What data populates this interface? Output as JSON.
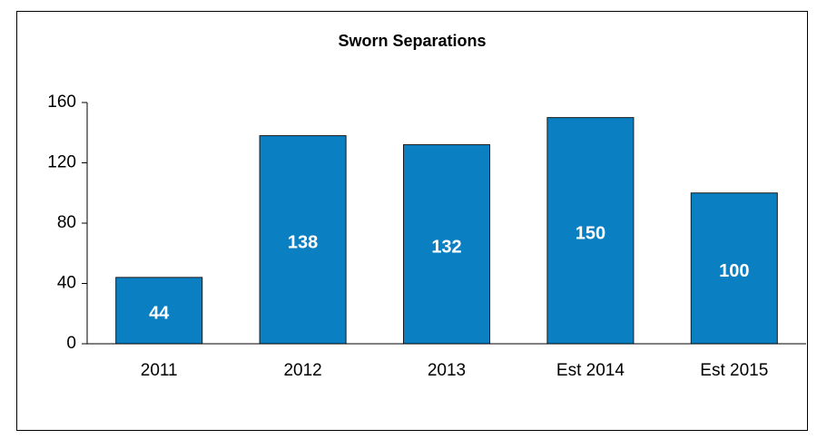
{
  "chart_data": {
    "type": "bar",
    "title": "Sworn Separations",
    "categories": [
      "2011",
      "2012",
      "2013",
      "Est 2014",
      "Est 2015"
    ],
    "values": [
      44,
      138,
      132,
      150,
      100
    ],
    "color": "#0a7fc2",
    "ylim": [
      0,
      160
    ],
    "yticks": [
      0,
      40,
      80,
      120,
      160
    ],
    "grid": false
  }
}
